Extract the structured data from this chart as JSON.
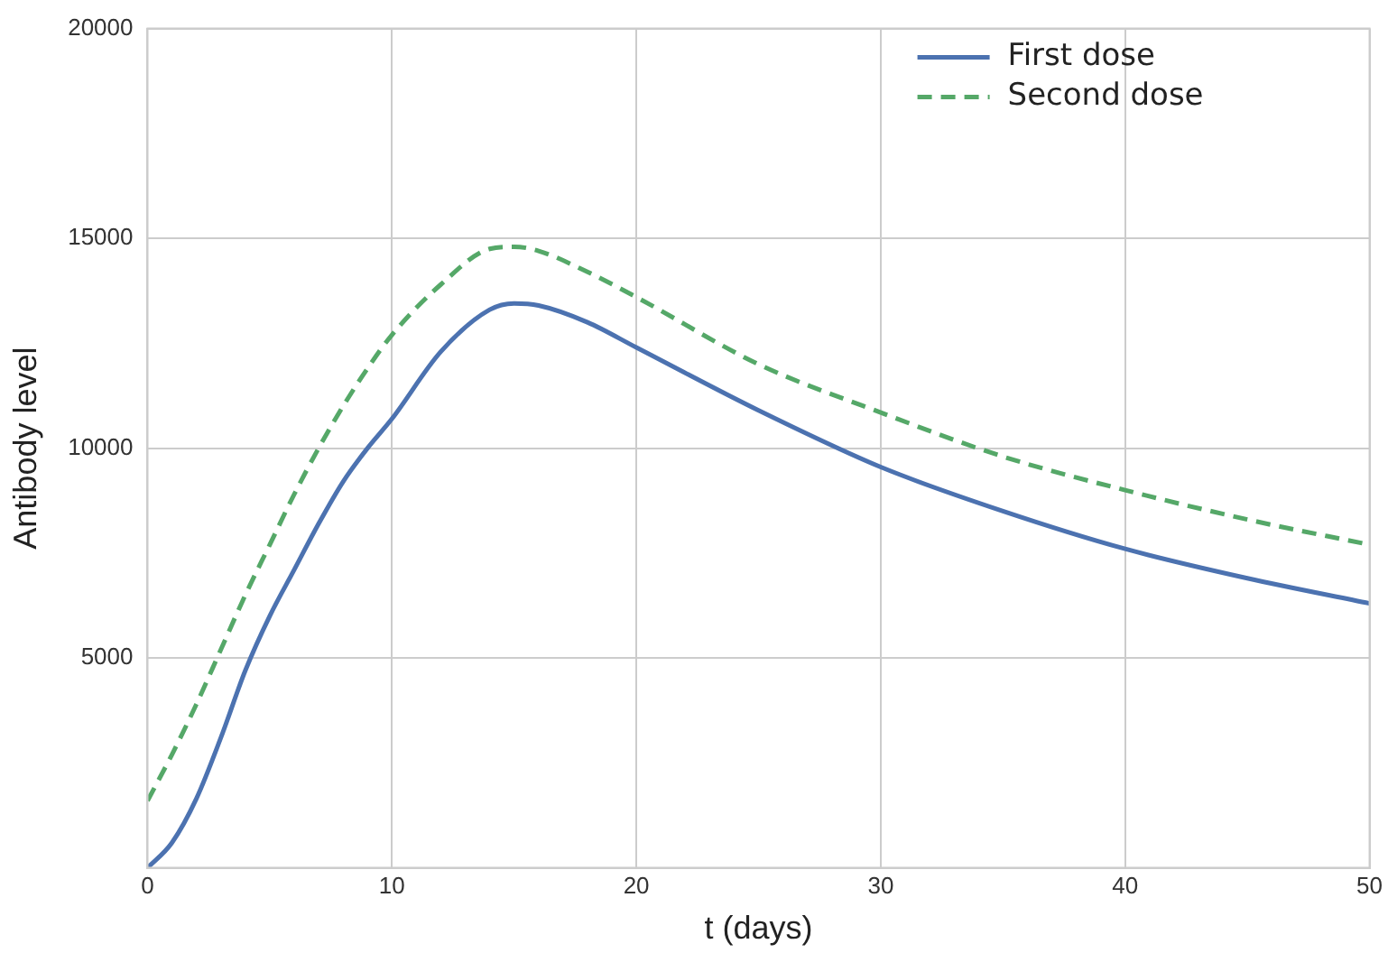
{
  "chart_data": {
    "type": "line",
    "xlabel": "t (days)",
    "ylabel": "Antibody level",
    "x": [
      0,
      1,
      2,
      3,
      4,
      5,
      6,
      7,
      8,
      9,
      10,
      12,
      14,
      15,
      16,
      18,
      20,
      25,
      30,
      35,
      40,
      45,
      50
    ],
    "series": [
      {
        "name": "First dose",
        "color": "#4c72b0",
        "line_style": "solid",
        "values": [
          0,
          600,
          1650,
          3100,
          4700,
          6000,
          7100,
          8200,
          9200,
          10000,
          10700,
          12300,
          13300,
          13450,
          13400,
          13000,
          12400,
          10900,
          9550,
          8500,
          7600,
          6900,
          6300
        ]
      },
      {
        "name": "Second dose",
        "color": "#55a868",
        "line_style": "dashed",
        "values": [
          1600,
          2700,
          3900,
          5200,
          6500,
          7700,
          8900,
          10000,
          11000,
          11900,
          12700,
          13900,
          14750,
          14800,
          14700,
          14200,
          13600,
          12000,
          10850,
          9800,
          9000,
          8300,
          7700
        ]
      }
    ],
    "xlim": [
      0,
      50
    ],
    "xticks": [
      0,
      10,
      20,
      30,
      40,
      50
    ],
    "ylim": [
      0,
      20000
    ],
    "yticks": [
      5000,
      10000,
      15000,
      20000
    ],
    "grid": true,
    "legend": "top right",
    "marker": "none"
  }
}
